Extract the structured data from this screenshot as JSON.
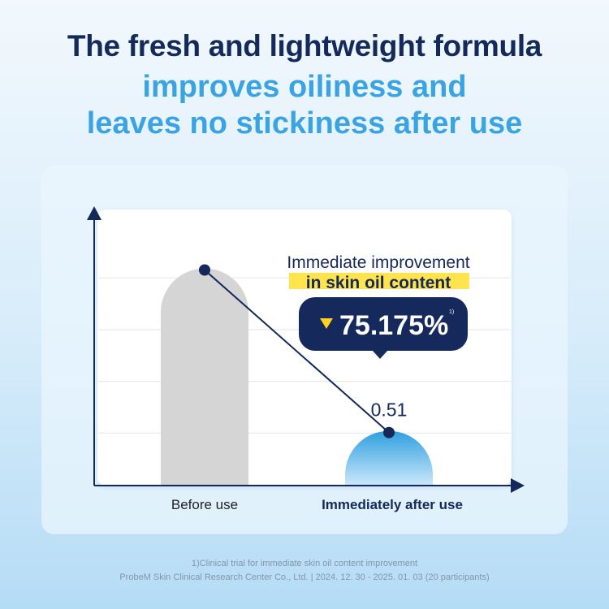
{
  "headline": {
    "line1": "The fresh and lightweight formula",
    "line2": "improves oiliness and",
    "line3": "leaves no stickiness after use"
  },
  "chart_data": {
    "type": "bar",
    "categories": [
      "Before use",
      "Immediately after use"
    ],
    "values": [
      2.05,
      0.51
    ],
    "value_labels": [
      "",
      "0.51"
    ],
    "title": "Immediate improvement",
    "title_highlight": "in skin oil content",
    "callout": {
      "value": "75.175%",
      "superscript": "1)"
    },
    "ylim": [
      0,
      2.6
    ],
    "grid": true,
    "colors": {
      "before": "#d5d5d5",
      "after_top": "#2f9fdf",
      "after_bottom": "#c9e7fa",
      "line": "#14285a",
      "highlight": "#ffe44d"
    }
  },
  "footnote": {
    "line1": "1)Clinical trial for immediate skin oil content improvement",
    "line2": "ProbeM Skin Clinical Research Center  Co., Ltd. | 2024. 12. 30 - 2025. 01. 03 (20 participants)"
  }
}
